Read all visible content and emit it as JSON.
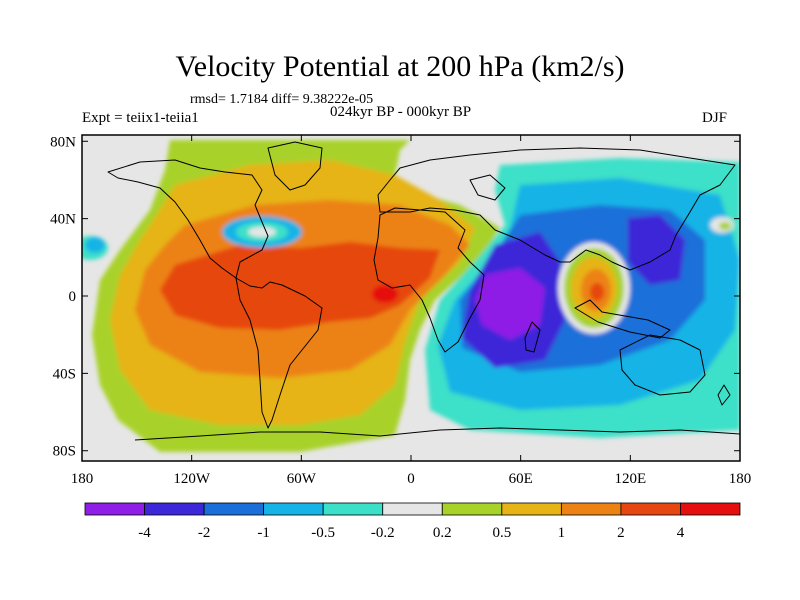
{
  "title": "Velocity Potential at 200 hPa (km2/s)",
  "stats": "rmsd= 1.7184 diff= 9.38222e-05",
  "left_label": "Expt = teiix1-teiia1",
  "center_label": "024kyr BP - 000kyr BP",
  "right_label": "DJF",
  "lat_ticks": [
    {
      "lat": 80,
      "label": "80N"
    },
    {
      "lat": 40,
      "label": "40N"
    },
    {
      "lat": 0,
      "label": "0"
    },
    {
      "lat": -40,
      "label": "40S"
    },
    {
      "lat": -80,
      "label": "80S"
    }
  ],
  "lon_ticks": [
    {
      "lon": -180,
      "label": "180"
    },
    {
      "lon": -120,
      "label": "120W"
    },
    {
      "lon": -60,
      "label": "60W"
    },
    {
      "lon": 0,
      "label": "0"
    },
    {
      "lon": 60,
      "label": "60E"
    },
    {
      "lon": 120,
      "label": "120E"
    },
    {
      "lon": 180,
      "label": "180"
    }
  ],
  "colorbar": {
    "colors": [
      "#8f1ee6",
      "#3c28d8",
      "#1a6fd9",
      "#16b4e6",
      "#3ce0c8",
      "#e6e6e6",
      "#a8d22a",
      "#e6b414",
      "#ec8214",
      "#e6460f",
      "#e60f0f"
    ],
    "labels": [
      "-4",
      "-2",
      "-1",
      "-0.5",
      "-0.2",
      "0.2",
      "0.5",
      "1",
      "2",
      "4"
    ]
  },
  "colors": {
    "background": "#e6e6e6",
    "coast": "#000000"
  }
}
